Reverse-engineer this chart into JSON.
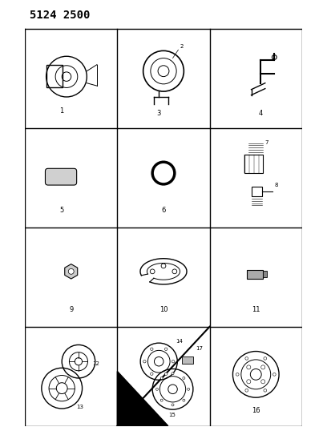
{
  "title": "5124 2500",
  "bg_color": "#ffffff",
  "grid_color": "#000000",
  "text_color": "#000000",
  "grid_rows": 4,
  "grid_cols": 3,
  "figsize": [
    4.08,
    5.33
  ],
  "dpi": 100,
  "cell_labels": [
    {
      "num": "1",
      "row": 0,
      "col": 0
    },
    {
      "num": "2",
      "row": 0,
      "col": 1
    },
    {
      "num": "3",
      "row": 0,
      "col": 1
    },
    {
      "num": "4",
      "row": 0,
      "col": 2
    },
    {
      "num": "5",
      "row": 1,
      "col": 0
    },
    {
      "num": "6",
      "row": 1,
      "col": 1
    },
    {
      "num": "7",
      "row": 1,
      "col": 2
    },
    {
      "num": "8",
      "row": 1,
      "col": 2
    },
    {
      "num": "9",
      "row": 2,
      "col": 0
    },
    {
      "num": "10",
      "row": 2,
      "col": 1
    },
    {
      "num": "11",
      "row": 2,
      "col": 2
    },
    {
      "num": "12",
      "row": 3,
      "col": 0
    },
    {
      "num": "13",
      "row": 3,
      "col": 0
    },
    {
      "num": "14",
      "row": 3,
      "col": 1
    },
    {
      "num": "15",
      "row": 3,
      "col": 1
    },
    {
      "num": "16",
      "row": 3,
      "col": 2
    },
    {
      "num": "17",
      "row": 3,
      "col": 1
    }
  ]
}
